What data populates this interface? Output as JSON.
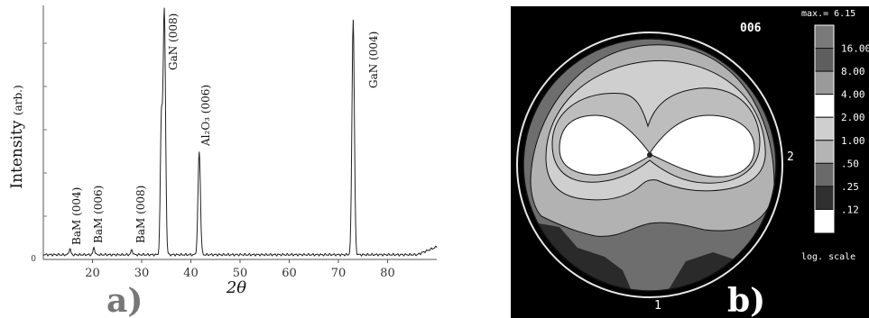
{
  "panel_a": {
    "label": "a)",
    "chart_data": {
      "type": "line",
      "xlabel": "2θ",
      "ylabel": "Intensity",
      "ylabel_unit": "(arb.)",
      "xlim": [
        10,
        90
      ],
      "ylim": [
        0,
        1
      ],
      "x_ticks": [
        20,
        30,
        40,
        50,
        60,
        70,
        80
      ],
      "y_ticks": [
        0
      ],
      "grid": false,
      "legend": "none",
      "peaks": [
        {
          "label": "BaM (004)",
          "x": 15.4,
          "y": 0.025
        },
        {
          "label": "BaM (006)",
          "x": 20.3,
          "y": 0.03
        },
        {
          "label": "BaM (008)",
          "x": 28.0,
          "y": 0.02
        },
        {
          "label": "GaN (008)",
          "x": 34.6,
          "y": 1.0
        },
        {
          "label": "Al2O3 (006)",
          "x": 41.7,
          "y": 0.42
        },
        {
          "label": "GaN (004)",
          "x": 73.0,
          "y": 0.96
        }
      ],
      "peak_labels": [
        "BaM (004)",
        "BaM (006)",
        "BaM (008)",
        "GaN (008)",
        "Al₂O₃ (006)",
        "GaN (004)"
      ]
    }
  },
  "panel_b": {
    "label": "b)",
    "chart_data": {
      "type": "heatmap",
      "title": "006",
      "max_label": "max.= 6.15",
      "scale_label": "log. scale",
      "axis_markers": [
        "1",
        "2"
      ],
      "levels": [
        16.0,
        8.0,
        4.0,
        2.0,
        1.0,
        0.5,
        0.25,
        0.12
      ],
      "level_labels": [
        "16.00",
        "8.00",
        "4.00",
        "2.00",
        "1.00",
        ".50",
        ".25",
        ".12"
      ],
      "level_colors": [
        "#7a7a7a",
        "#5e5e5e",
        "#9a9a9a",
        "#ffffff",
        "#cfcfcf",
        "#b4b4b4",
        "#6a6a6a",
        "#303030",
        "#ffffff"
      ]
    }
  }
}
